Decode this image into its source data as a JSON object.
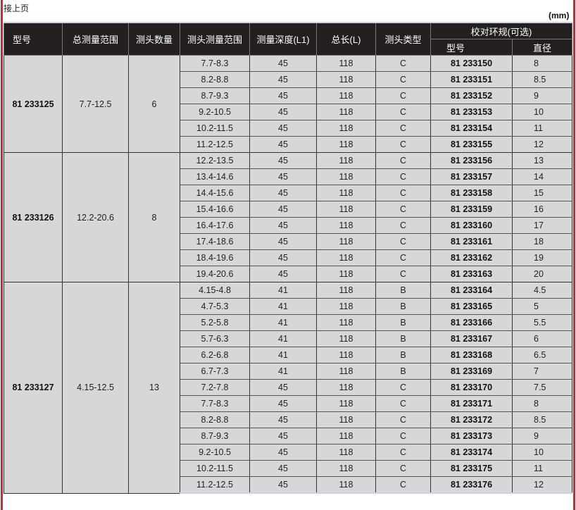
{
  "continued_label": "接上页",
  "unit_label": "(mm)",
  "header": {
    "model": "型号",
    "total_range": "总测量范围",
    "head_count": "测头数量",
    "head_range": "测头测量范围",
    "depth": "测量深度(L1)",
    "length": "总长(L)",
    "head_type": "测头类型",
    "ring_group": "校对环规(可选)",
    "ring_model": "型号",
    "ring_diameter": "直径"
  },
  "groups": [
    {
      "model": "81 233125",
      "total_range": "7.7-12.5",
      "head_count": "6",
      "rows": [
        [
          "7.7-8.3",
          "45",
          "118",
          "C",
          "81 233150",
          "8"
        ],
        [
          "8.2-8.8",
          "45",
          "118",
          "C",
          "81 233151",
          "8.5"
        ],
        [
          "8.7-9.3",
          "45",
          "118",
          "C",
          "81 233152",
          "9"
        ],
        [
          "9.2-10.5",
          "45",
          "118",
          "C",
          "81 233153",
          "10"
        ],
        [
          "10.2-11.5",
          "45",
          "118",
          "C",
          "81 233154",
          "11"
        ],
        [
          "11.2-12.5",
          "45",
          "118",
          "C",
          "81 233155",
          "12"
        ]
      ]
    },
    {
      "model": "81 233126",
      "total_range": "12.2-20.6",
      "head_count": "8",
      "rows": [
        [
          "12.2-13.5",
          "45",
          "118",
          "C",
          "81 233156",
          "13"
        ],
        [
          "13.4-14.6",
          "45",
          "118",
          "C",
          "81 233157",
          "14"
        ],
        [
          "14.4-15.6",
          "45",
          "118",
          "C",
          "81 233158",
          "15"
        ],
        [
          "15.4-16.6",
          "45",
          "118",
          "C",
          "81 233159",
          "16"
        ],
        [
          "16.4-17.6",
          "45",
          "118",
          "C",
          "81 233160",
          "17"
        ],
        [
          "17.4-18.6",
          "45",
          "118",
          "C",
          "81 233161",
          "18"
        ],
        [
          "18.4-19.6",
          "45",
          "118",
          "C",
          "81 233162",
          "19"
        ],
        [
          "19.4-20.6",
          "45",
          "118",
          "C",
          "81 233163",
          "20"
        ]
      ]
    },
    {
      "model": "81 233127",
      "total_range": "4.15-12.5",
      "head_count": "13",
      "rows": [
        [
          "4.15-4.8",
          "41",
          "118",
          "B",
          "81 233164",
          "4.5"
        ],
        [
          "4.7-5.3",
          "41",
          "118",
          "B",
          "81 233165",
          "5"
        ],
        [
          "5.2-5.8",
          "41",
          "118",
          "B",
          "81 233166",
          "5.5"
        ],
        [
          "5.7-6.3",
          "41",
          "118",
          "B",
          "81 233167",
          "6"
        ],
        [
          "6.2-6.8",
          "41",
          "118",
          "B",
          "81 233168",
          "6.5"
        ],
        [
          "6.7-7.3",
          "41",
          "118",
          "B",
          "81 233169",
          "7"
        ],
        [
          "7.2-7.8",
          "45",
          "118",
          "C",
          "81 233170",
          "7.5"
        ],
        [
          "7.7-8.3",
          "45",
          "118",
          "C",
          "81 233171",
          "8"
        ],
        [
          "8.2-8.8",
          "45",
          "118",
          "C",
          "81 233172",
          "8.5"
        ],
        [
          "8.7-9.3",
          "45",
          "118",
          "C",
          "81 233173",
          "9"
        ],
        [
          "9.2-10.5",
          "45",
          "118",
          "C",
          "81 233174",
          "10"
        ],
        [
          "10.2-11.5",
          "45",
          "118",
          "C",
          "81 233175",
          "11"
        ],
        [
          "11.2-12.5",
          "45",
          "118",
          "C",
          "81 233176",
          "12"
        ]
      ]
    }
  ]
}
